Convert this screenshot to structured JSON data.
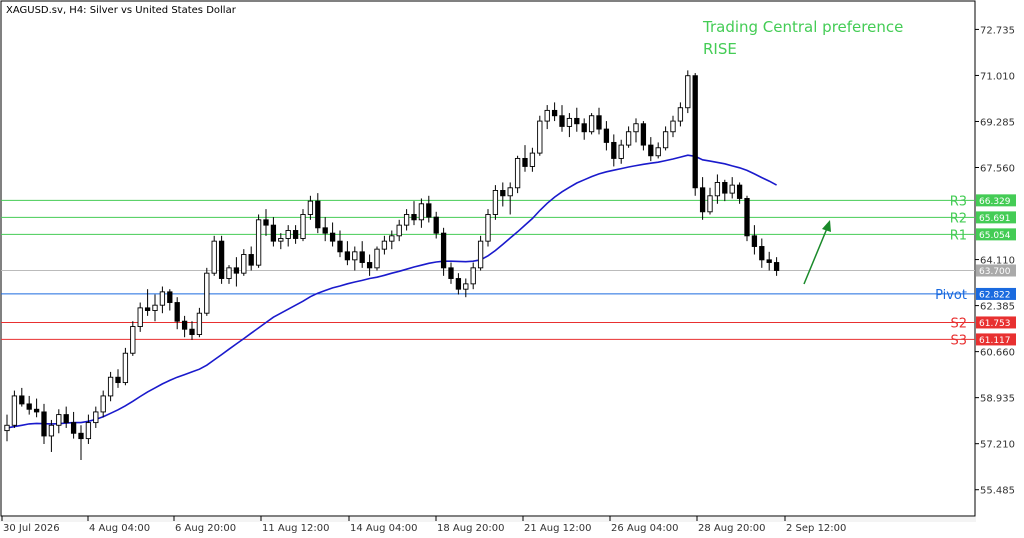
{
  "symbol_title": "XAGUSD.sv, H4:  Silver vs United States Dollar",
  "preference": {
    "line1": "Trading Central preference",
    "line2": "RISE",
    "color": "#44cc55"
  },
  "colors": {
    "bull": "#000000",
    "bear": "#000000",
    "ma": "#1a1acc",
    "pivot": "#1a6adf",
    "resistance": "#44cc55",
    "support": "#e83030",
    "arrow": "#1a8a2a",
    "current": "#aaaaaa"
  },
  "chart_data": {
    "type": "candlestick",
    "ylim": [
      54.5,
      73.8
    ],
    "y_ticks": [
      "72.735",
      "71.010",
      "69.285",
      "67.560",
      "64.110",
      "62.385",
      "60.660",
      "58.935",
      "57.210",
      "55.485"
    ],
    "x_ticks": [
      "30 Jul 2026",
      "4 Aug 04:00",
      "6 Aug 20:00",
      "11 Aug 12:00",
      "14 Aug 04:00",
      "18 Aug 20:00",
      "21 Aug 12:00",
      "26 Aug 04:00",
      "28 Aug 20:00",
      "2 Sep 12:00"
    ],
    "current_price": "63.700",
    "levels": [
      {
        "name": "R3",
        "value": "66.329",
        "kind": "resistance"
      },
      {
        "name": "R2",
        "value": "65.691",
        "kind": "resistance"
      },
      {
        "name": "R1",
        "value": "65.054",
        "kind": "resistance"
      },
      {
        "name": "Pivot",
        "value": "62.822",
        "kind": "pivot"
      },
      {
        "name": "S2",
        "value": "61.753",
        "kind": "support"
      },
      {
        "name": "S3",
        "value": "61.117",
        "kind": "support"
      }
    ],
    "ohlc": [
      [
        57.7,
        58.3,
        57.3,
        57.9
      ],
      [
        57.9,
        59.2,
        57.8,
        59.0
      ],
      [
        59.0,
        59.3,
        58.6,
        58.7
      ],
      [
        58.7,
        59.0,
        58.3,
        58.5
      ],
      [
        58.5,
        58.9,
        58.2,
        58.4
      ],
      [
        58.4,
        58.7,
        57.2,
        57.5
      ],
      [
        57.5,
        58.1,
        56.9,
        57.9
      ],
      [
        57.9,
        58.5,
        57.6,
        58.3
      ],
      [
        58.3,
        58.6,
        57.8,
        58.0
      ],
      [
        58.0,
        58.4,
        57.4,
        57.6
      ],
      [
        57.6,
        57.9,
        56.6,
        57.4
      ],
      [
        57.4,
        58.3,
        57.2,
        58.0
      ],
      [
        58.0,
        58.6,
        57.8,
        58.4
      ],
      [
        58.4,
        59.2,
        58.2,
        59.0
      ],
      [
        59.0,
        59.9,
        58.8,
        59.7
      ],
      [
        59.7,
        60.0,
        59.3,
        59.5
      ],
      [
        59.5,
        60.8,
        59.4,
        60.6
      ],
      [
        60.6,
        61.8,
        60.5,
        61.6
      ],
      [
        61.6,
        62.5,
        61.4,
        62.3
      ],
      [
        62.3,
        63.0,
        62.0,
        62.2
      ],
      [
        62.2,
        62.8,
        61.8,
        62.4
      ],
      [
        62.4,
        63.1,
        62.1,
        62.9
      ],
      [
        62.9,
        63.0,
        62.2,
        62.5
      ],
      [
        62.5,
        62.7,
        61.5,
        61.8
      ],
      [
        61.8,
        62.0,
        61.2,
        61.5
      ],
      [
        61.5,
        61.8,
        61.1,
        61.3
      ],
      [
        61.3,
        62.3,
        61.2,
        62.1
      ],
      [
        62.1,
        63.8,
        62.0,
        63.6
      ],
      [
        63.6,
        65.0,
        63.5,
        64.8
      ],
      [
        64.8,
        65.0,
        63.2,
        63.4
      ],
      [
        63.4,
        63.9,
        63.2,
        63.8
      ],
      [
        63.8,
        64.2,
        63.1,
        63.6
      ],
      [
        63.6,
        64.5,
        63.5,
        64.3
      ],
      [
        64.3,
        64.6,
        63.7,
        63.9
      ],
      [
        63.9,
        65.8,
        63.8,
        65.6
      ],
      [
        65.6,
        66.0,
        65.0,
        65.4
      ],
      [
        65.4,
        65.7,
        64.6,
        64.8
      ],
      [
        64.8,
        65.1,
        64.5,
        64.9
      ],
      [
        64.9,
        65.4,
        64.6,
        65.2
      ],
      [
        65.2,
        65.4,
        64.7,
        64.9
      ],
      [
        64.9,
        66.0,
        64.8,
        65.8
      ],
      [
        65.8,
        66.5,
        65.6,
        66.3
      ],
      [
        66.3,
        66.6,
        65.1,
        65.3
      ],
      [
        65.3,
        65.7,
        64.8,
        65.1
      ],
      [
        65.1,
        65.5,
        64.6,
        64.8
      ],
      [
        64.8,
        65.2,
        64.2,
        64.4
      ],
      [
        64.4,
        64.8,
        63.9,
        64.1
      ],
      [
        64.1,
        64.6,
        63.7,
        64.4
      ],
      [
        64.4,
        64.8,
        63.8,
        64.0
      ],
      [
        64.0,
        64.3,
        63.5,
        63.8
      ],
      [
        63.8,
        64.6,
        63.7,
        64.5
      ],
      [
        64.5,
        65.0,
        64.3,
        64.8
      ],
      [
        64.8,
        65.2,
        64.5,
        65.0
      ],
      [
        65.0,
        65.6,
        64.8,
        65.4
      ],
      [
        65.4,
        66.0,
        65.2,
        65.8
      ],
      [
        65.8,
        66.3,
        65.4,
        65.6
      ],
      [
        65.6,
        66.4,
        65.3,
        66.2
      ],
      [
        66.2,
        66.5,
        65.5,
        65.7
      ],
      [
        65.7,
        65.9,
        64.9,
        65.1
      ],
      [
        65.1,
        65.3,
        63.5,
        63.8
      ],
      [
        63.8,
        64.0,
        63.2,
        63.4
      ],
      [
        63.4,
        63.6,
        62.8,
        63.0
      ],
      [
        63.0,
        63.4,
        62.7,
        63.2
      ],
      [
        63.2,
        64.0,
        63.0,
        63.8
      ],
      [
        63.8,
        65.0,
        63.7,
        64.8
      ],
      [
        64.8,
        66.0,
        64.6,
        65.8
      ],
      [
        65.8,
        66.9,
        65.6,
        66.7
      ],
      [
        66.7,
        67.0,
        66.1,
        66.5
      ],
      [
        66.5,
        67.0,
        65.8,
        66.8
      ],
      [
        66.8,
        68.0,
        66.6,
        67.9
      ],
      [
        67.9,
        68.4,
        67.4,
        67.6
      ],
      [
        67.6,
        68.3,
        67.4,
        68.1
      ],
      [
        68.1,
        69.5,
        68.0,
        69.3
      ],
      [
        69.3,
        69.9,
        69.0,
        69.7
      ],
      [
        69.7,
        70.0,
        69.3,
        69.5
      ],
      [
        69.5,
        69.9,
        68.9,
        69.1
      ],
      [
        69.1,
        69.6,
        68.7,
        69.4
      ],
      [
        69.4,
        69.8,
        68.9,
        69.2
      ],
      [
        69.2,
        69.4,
        68.6,
        68.9
      ],
      [
        68.9,
        69.6,
        68.8,
        69.5
      ],
      [
        69.5,
        69.8,
        68.8,
        69.0
      ],
      [
        69.0,
        69.3,
        68.2,
        68.5
      ],
      [
        68.5,
        68.8,
        67.6,
        67.9
      ],
      [
        67.9,
        68.6,
        67.7,
        68.4
      ],
      [
        68.4,
        69.1,
        68.3,
        68.9
      ],
      [
        68.9,
        69.4,
        68.5,
        69.2
      ],
      [
        69.2,
        69.3,
        68.2,
        68.4
      ],
      [
        68.4,
        68.7,
        67.8,
        68.0
      ],
      [
        68.0,
        68.5,
        67.9,
        68.3
      ],
      [
        68.3,
        69.1,
        68.2,
        68.9
      ],
      [
        68.9,
        69.5,
        68.7,
        69.3
      ],
      [
        69.3,
        70.0,
        69.1,
        69.8
      ],
      [
        69.8,
        71.2,
        69.6,
        71.0
      ],
      [
        71.0,
        71.1,
        66.5,
        66.8
      ],
      [
        66.8,
        67.2,
        65.6,
        65.9
      ],
      [
        65.9,
        66.8,
        65.8,
        66.5
      ],
      [
        66.5,
        67.3,
        66.2,
        67.0
      ],
      [
        67.0,
        67.1,
        66.3,
        66.6
      ],
      [
        66.6,
        67.2,
        66.4,
        66.9
      ],
      [
        66.9,
        67.0,
        66.2,
        66.4
      ],
      [
        66.4,
        66.5,
        64.8,
        65.0
      ],
      [
        65.0,
        65.4,
        64.3,
        64.6
      ],
      [
        64.6,
        64.9,
        63.8,
        64.1
      ],
      [
        64.1,
        64.4,
        63.7,
        64.0
      ],
      [
        64.0,
        64.2,
        63.5,
        63.7
      ]
    ],
    "ma": [
      57.8,
      57.85,
      57.9,
      57.95,
      57.97,
      57.96,
      57.95,
      57.96,
      57.98,
      58.0,
      58.0,
      58.05,
      58.12,
      58.22,
      58.35,
      58.48,
      58.63,
      58.8,
      58.98,
      59.15,
      59.3,
      59.45,
      59.58,
      59.7,
      59.8,
      59.9,
      60.0,
      60.15,
      60.35,
      60.55,
      60.75,
      60.95,
      61.15,
      61.35,
      61.55,
      61.75,
      61.95,
      62.1,
      62.25,
      62.4,
      62.55,
      62.72,
      62.85,
      62.95,
      63.05,
      63.12,
      63.2,
      63.27,
      63.33,
      63.4,
      63.45,
      63.52,
      63.6,
      63.67,
      63.75,
      63.83,
      63.9,
      63.97,
      64.02,
      64.05,
      64.05,
      64.04,
      64.03,
      64.05,
      64.1,
      64.25,
      64.45,
      64.68,
      64.92,
      65.15,
      65.4,
      65.65,
      65.95,
      66.22,
      66.45,
      66.65,
      66.82,
      66.98,
      67.1,
      67.22,
      67.32,
      67.4,
      67.46,
      67.52,
      67.58,
      67.63,
      67.68,
      67.72,
      67.76,
      67.82,
      67.88,
      67.95,
      68.02,
      67.98,
      67.85,
      67.8,
      67.75,
      67.7,
      67.62,
      67.55,
      67.45,
      67.32,
      67.18,
      67.05,
      66.9
    ]
  }
}
